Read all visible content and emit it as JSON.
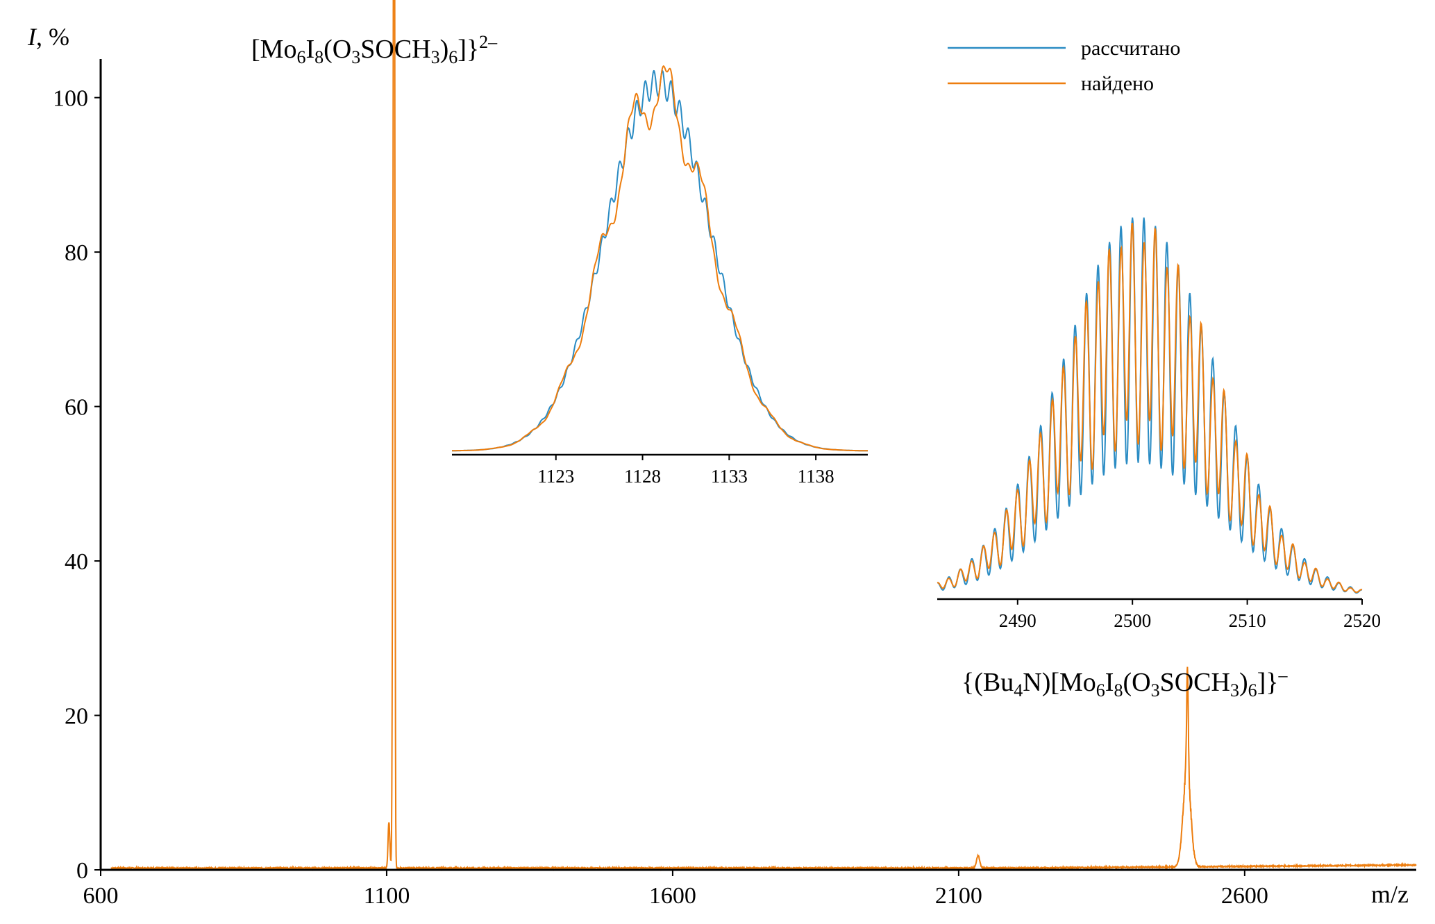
{
  "chart_data": [
    {
      "type": "line",
      "ylabel_italic": "I",
      "ylabel_rest": ", %",
      "xlabel": "m/z",
      "xlim": [
        600,
        2900
      ],
      "ylim": [
        0,
        105
      ],
      "xticks": [
        600,
        1100,
        1600,
        2100,
        2600
      ],
      "yticks": [
        0,
        20,
        40,
        60,
        80,
        100
      ],
      "series": [
        {
          "color": "#ed7d0e",
          "peaks": [
            {
              "x": 1104,
              "y": 6,
              "w": 2.2
            },
            {
              "x": 1112,
              "y": 97,
              "w": 2.0
            },
            {
              "x": 1113.5,
              "y": 100,
              "w": 1.4
            },
            {
              "x": 2134,
              "y": 1.6,
              "w": 4
            },
            {
              "x": 2499,
              "y": 12,
              "w": 9
            },
            {
              "x": 2500,
              "y": 13,
              "w": 2
            }
          ]
        }
      ],
      "annotations": [
        {
          "parts": [
            [
              "[Mo",
              "n"
            ],
            [
              "6",
              "sub"
            ],
            [
              "I",
              "n"
            ],
            [
              "8",
              "sub"
            ],
            [
              "(O",
              "n"
            ],
            [
              "3",
              "sub"
            ],
            [
              "SOCH",
              "n"
            ],
            [
              "3",
              "sub"
            ],
            [
              ")",
              "n"
            ],
            [
              "6",
              "sub"
            ],
            [
              "]}",
              "n"
            ],
            [
              "2–",
              "sup"
            ]
          ]
        },
        {
          "parts": [
            [
              "{(Bu",
              "n"
            ],
            [
              "4",
              "sub"
            ],
            [
              "N)[Mo",
              "n"
            ],
            [
              "6",
              "sub"
            ],
            [
              "I",
              "n"
            ],
            [
              "8",
              "sub"
            ],
            [
              "(O",
              "n"
            ],
            [
              "3",
              "sub"
            ],
            [
              "SOCH",
              "n"
            ],
            [
              "3",
              "sub"
            ],
            [
              ")",
              "n"
            ],
            [
              "6",
              "sub"
            ],
            [
              "]}",
              "n"
            ],
            [
              "–",
              "sup"
            ]
          ]
        }
      ]
    },
    {
      "type": "line",
      "xlim": [
        1117,
        1141
      ],
      "xticks": [
        1123,
        1128,
        1133,
        1138
      ],
      "envelope_center": 1128.9,
      "envelope_sigma": 3.0,
      "series": [
        {
          "name": "рассчитано",
          "color": "#2b8cc4",
          "peak_spacing": 0.5,
          "modulation": 0.07
        },
        {
          "name": "найдено",
          "color": "#ed7d0e",
          "peak_spacing": 0.5,
          "modulation": 0.03
        }
      ]
    },
    {
      "type": "line",
      "xlim": [
        2483,
        2520
      ],
      "xticks": [
        2490,
        2500,
        2510,
        2520
      ],
      "envelope_center": 2500.5,
      "envelope_sigma": 6.7,
      "series": [
        {
          "name": "рассчитано",
          "color": "#2b8cc4",
          "peak_spacing": 1,
          "modulation": 0.65
        },
        {
          "name": "найдено",
          "color": "#ed7d0e",
          "peak_spacing": 1,
          "modulation": 0.55
        }
      ]
    }
  ],
  "legend": {
    "items": [
      {
        "label": "рассчитано",
        "color": "#2b8cc4"
      },
      {
        "label": "найдено",
        "color": "#ed7d0e"
      }
    ]
  }
}
